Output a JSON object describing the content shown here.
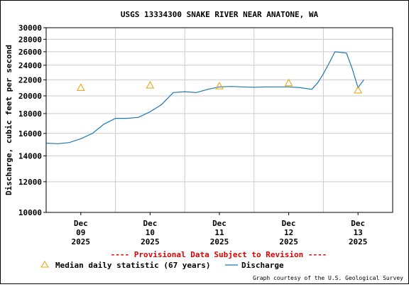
{
  "chart_data": {
    "type": "line",
    "title": "USGS 13334300 SNAKE RIVER NEAR ANATONE, WA",
    "xlabel": "",
    "ylabel": "Discharge, cubic feet per second",
    "y_scale": "log",
    "ylim": [
      10000,
      30000
    ],
    "xlim": [
      "2025-12-08 12:00",
      "2025-12-13 12:00"
    ],
    "y_ticks": [
      10000,
      12000,
      14000,
      16000,
      18000,
      20000,
      22000,
      24000,
      26000,
      28000,
      30000
    ],
    "y_tick_labels": [
      "10000",
      "12000",
      "14000",
      "16000",
      "18000",
      "20000",
      "22000",
      "24000",
      "26000",
      "28000",
      "30000"
    ],
    "x_ticks": [
      {
        "x": "2025-12-09",
        "month": "Dec",
        "day": "09",
        "year": "2025"
      },
      {
        "x": "2025-12-10",
        "month": "Dec",
        "day": "10",
        "year": "2025"
      },
      {
        "x": "2025-12-11",
        "month": "Dec",
        "day": "11",
        "year": "2025"
      },
      {
        "x": "2025-12-12",
        "month": "Dec",
        "day": "12",
        "year": "2025"
      },
      {
        "x": "2025-12-13",
        "month": "Dec",
        "day": "13",
        "year": "2025"
      }
    ],
    "grid": true,
    "colors": {
      "discharge": "#1f78b4",
      "median": "#e8a000",
      "warning": "#e00000",
      "grid": "#cccccc"
    },
    "series": [
      {
        "name": "Discharge",
        "style": "line",
        "x": [
          "2025-12-08 12:00",
          "2025-12-08 16:00",
          "2025-12-08 20:00",
          "2025-12-09 00:00",
          "2025-12-09 04:00",
          "2025-12-09 08:00",
          "2025-12-09 12:00",
          "2025-12-09 16:00",
          "2025-12-09 20:00",
          "2025-12-10 00:00",
          "2025-12-10 04:00",
          "2025-12-10 08:00",
          "2025-12-10 12:00",
          "2025-12-10 16:00",
          "2025-12-10 20:00",
          "2025-12-11 00:00",
          "2025-12-11 04:00",
          "2025-12-11 08:00",
          "2025-12-11 12:00",
          "2025-12-11 16:00",
          "2025-12-11 20:00",
          "2025-12-12 00:00",
          "2025-12-12 04:00",
          "2025-12-12 08:00",
          "2025-12-12 10:00",
          "2025-12-12 12:00",
          "2025-12-12 14:00",
          "2025-12-12 16:00",
          "2025-12-12 20:00",
          "2025-12-12 22:00",
          "2025-12-13 00:00",
          "2025-12-13 02:00"
        ],
        "values": [
          15100,
          15050,
          15150,
          15500,
          16000,
          16900,
          17500,
          17500,
          17600,
          18200,
          19000,
          20400,
          20500,
          20400,
          20800,
          21100,
          21150,
          21100,
          21050,
          21100,
          21100,
          21100,
          21000,
          20800,
          21600,
          22800,
          24300,
          26000,
          25800,
          23500,
          21000,
          22000
        ]
      },
      {
        "name": "Median daily statistic (67 years)",
        "style": "marker",
        "x": [
          "2025-12-09 00:00",
          "2025-12-10 00:00",
          "2025-12-11 00:00",
          "2025-12-12 00:00",
          "2025-12-13 00:00"
        ],
        "values": [
          21000,
          21300,
          21200,
          21600,
          20700
        ]
      }
    ],
    "legend": {
      "placement": "bottom",
      "median_label": "Median daily statistic (67 years)",
      "discharge_label": "Discharge"
    },
    "provisional_notice": "---- Provisional Data Subject to Revision ----",
    "credit": "Graph courtesy of the U.S. Geological Survey"
  }
}
